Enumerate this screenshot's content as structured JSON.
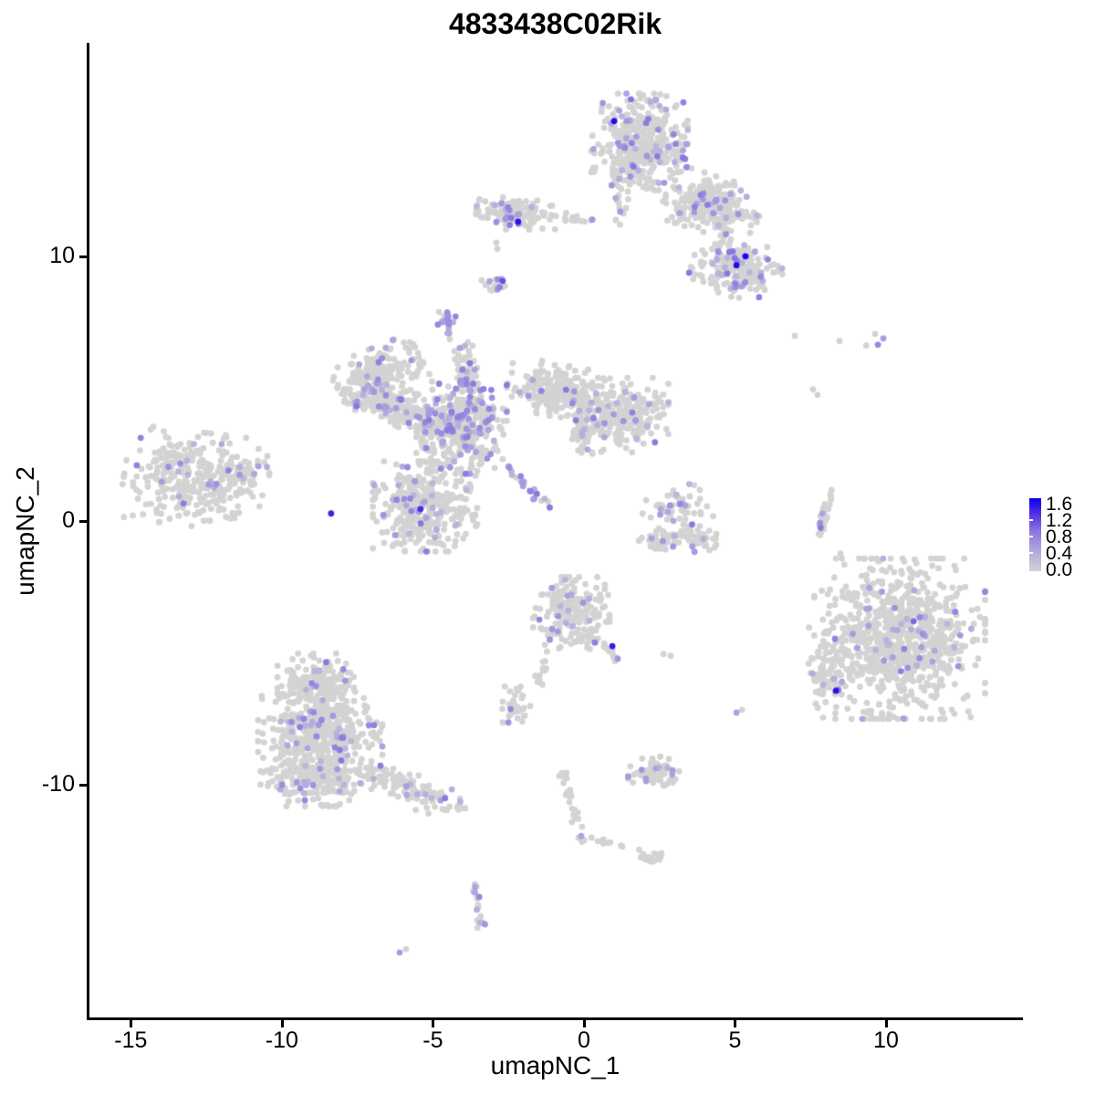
{
  "chart_data": {
    "type": "scatter",
    "title": "4833438C02Rik",
    "xlabel": "umapNC_1",
    "ylabel": "umapNC_2",
    "x_ticks": [
      -15,
      -10,
      -5,
      0,
      5,
      10
    ],
    "y_ticks": [
      10,
      0,
      -10
    ],
    "x_range": [
      -16.4,
      14.5
    ],
    "y_range": [
      -18.8,
      18.1
    ],
    "grid": false,
    "legend": {
      "position": "right",
      "labels": [
        "1.6",
        "1.2",
        "0.8",
        "0.4",
        "0.0"
      ],
      "min": 0.0,
      "max": 1.6,
      "color_low": "#D3D3D3",
      "color_high": "#0000FF"
    },
    "colors": {
      "zero_expression": "#D3D3D3",
      "stops": [
        [
          0,
          "#D3D3D3"
        ],
        [
          0.3,
          "#AFA3DF"
        ],
        [
          0.55,
          "#8C76DF"
        ],
        [
          0.8,
          "#4E2BE3"
        ],
        [
          1,
          "#0A00F0"
        ]
      ]
    },
    "seed": 42,
    "point_radius_px": 3.4,
    "clusters": [
      {
        "name": "top-main",
        "cx": 1.84,
        "cy": 14.2,
        "rx": 1.45,
        "ry": 1.8,
        "rot": 0,
        "n": 420,
        "frac": 0.1
      },
      {
        "name": "top-neck",
        "type": "band",
        "p1": [
          1.12,
          12.99
        ],
        "p2": [
          1.3,
          11.09
        ],
        "w": 0.25,
        "n": 16,
        "frac": 0.06
      },
      {
        "name": "top-right-arm",
        "cx": 4.26,
        "cy": 11.96,
        "rx": 1.45,
        "ry": 0.97,
        "rot": -20,
        "n": 260,
        "frac": 0.13
      },
      {
        "name": "top-right-join",
        "type": "band",
        "p1": [
          4.47,
          11.02
        ],
        "p2": [
          4.83,
          10.47
        ],
        "w": 0.2,
        "n": 10,
        "frac": 0.1
      },
      {
        "name": "top-right-lower",
        "cx": 5.07,
        "cy": 9.54,
        "rx": 1.36,
        "ry": 0.97,
        "rot": -15,
        "n": 200,
        "frac": 0.12
      },
      {
        "name": "top-left-arm",
        "cx": -2.24,
        "cy": 11.61,
        "rx": 1.21,
        "ry": 0.55,
        "rot": -5,
        "n": 120,
        "frac": 0.13
      },
      {
        "name": "top-left-chain",
        "type": "band",
        "p1": [
          -1.09,
          11.54
        ],
        "p2": [
          0.57,
          11.37
        ],
        "w": 0.18,
        "n": 16,
        "frac": 0.05
      },
      {
        "name": "small-streak",
        "cx": -2.9,
        "cy": 8.85,
        "rx": 0.33,
        "ry": 0.52,
        "rot": 55,
        "n": 20,
        "frac": 0.4
      },
      {
        "name": "tiny-blob",
        "cx": -4.59,
        "cy": 7.57,
        "rx": 0.39,
        "ry": 0.42,
        "rot": 0,
        "n": 20,
        "frac": 0.45
      },
      {
        "name": "mid-arm-upleft",
        "cx": -6.77,
        "cy": 5.56,
        "rx": 1.36,
        "ry": 0.9,
        "rot": 25,
        "n": 200,
        "frac": 0.08
      },
      {
        "name": "mid-band",
        "cx": -6.25,
        "cy": 4.32,
        "rx": 1.66,
        "ry": 0.62,
        "rot": -20,
        "n": 180,
        "frac": 0.15
      },
      {
        "name": "mid-core",
        "cx": -4.05,
        "cy": 3.49,
        "rx": 1.36,
        "ry": 1.55,
        "rot": 0,
        "n": 400,
        "frac": 0.17
      },
      {
        "name": "mid-lower-lobe",
        "cx": -5.26,
        "cy": 0.55,
        "rx": 1.57,
        "ry": 1.55,
        "rot": 0,
        "n": 380,
        "frac": 0.11
      },
      {
        "name": "mid-up-spur",
        "cx": -3.9,
        "cy": 5.49,
        "rx": 0.39,
        "ry": 1.04,
        "rot": 0,
        "n": 60,
        "frac": 0.22
      },
      {
        "name": "mid-right-arm",
        "cx": -0.88,
        "cy": 4.94,
        "rx": 1.51,
        "ry": 0.9,
        "rot": -12,
        "n": 230,
        "frac": 0.08
      },
      {
        "name": "mid-right-lobe",
        "cx": 1.3,
        "cy": 4.01,
        "rx": 1.36,
        "ry": 1.28,
        "rot": 0,
        "n": 270,
        "frac": 0.08
      },
      {
        "name": "mid-diag-tail",
        "type": "band",
        "p1": [
          -2.63,
          2.11
        ],
        "p2": [
          -1.15,
          0.52
        ],
        "w": 0.2,
        "n": 26,
        "frac": 0.55
      },
      {
        "name": "mid-bridge",
        "cx": 0.03,
        "cy": 3.49,
        "rx": 0.54,
        "ry": 0.86,
        "rot": 0,
        "n": 50,
        "frac": 0.1
      },
      {
        "name": "far-left",
        "cx": -12.9,
        "cy": 1.59,
        "rx": 2.11,
        "ry": 1.62,
        "rot": -8,
        "n": 320,
        "frac": 0.07
      },
      {
        "name": "far-left-tip",
        "cx": -11.21,
        "cy": 1.76,
        "rx": 0.72,
        "ry": 0.45,
        "rot": 0,
        "n": 45,
        "frac": 0.07
      },
      {
        "name": "crescent-top",
        "cx": 3.11,
        "cy": 0.66,
        "rx": 1.06,
        "ry": 0.72,
        "rot": 0,
        "n": 45,
        "frac": 0.13
      },
      {
        "name": "crescent-left",
        "cx": 2.57,
        "cy": -0.69,
        "rx": 0.66,
        "ry": 0.38,
        "rot": 20,
        "n": 45,
        "frac": 0.05
      },
      {
        "name": "crescent-right",
        "cx": 3.78,
        "cy": -0.62,
        "rx": 0.66,
        "ry": 0.38,
        "rot": -20,
        "n": 45,
        "frac": 0.05
      },
      {
        "name": "sliver",
        "type": "band",
        "p1": [
          7.76,
          -0.59
        ],
        "p2": [
          8.22,
          1.11
        ],
        "w": 0.12,
        "n": 30,
        "frac": 0.05
      },
      {
        "name": "right-big",
        "cx": 10.45,
        "cy": -4.46,
        "rx": 2.57,
        "ry": 2.76,
        "rot": 0,
        "n": 860,
        "frac": 0.05
      },
      {
        "name": "right-appendage",
        "cx": 8.03,
        "cy": -5.74,
        "rx": 0.54,
        "ry": 1.55,
        "rot": 0,
        "n": 70,
        "frac": 0.04
      },
      {
        "name": "center-bottom",
        "cx": -0.42,
        "cy": -3.49,
        "rx": 1.15,
        "ry": 1.24,
        "rot": 0,
        "n": 215,
        "frac": 0.06
      },
      {
        "name": "cb-spur",
        "type": "band",
        "p1": [
          0.18,
          -4.22
        ],
        "p2": [
          1.12,
          -5.22
        ],
        "w": 0.2,
        "n": 24,
        "frac": 0.12
      },
      {
        "name": "cb-chain-a",
        "type": "band",
        "p1": [
          -1.15,
          -4.84
        ],
        "p2": [
          -1.6,
          -6.43
        ],
        "w": 0.15,
        "n": 16,
        "frac": 0
      },
      {
        "name": "cb-chain-b",
        "type": "band",
        "p1": [
          -0.76,
          -9.16
        ],
        "p2": [
          -0.06,
          -12.3
        ],
        "w": 0.16,
        "n": 30,
        "frac": 0.03
      },
      {
        "name": "cb-dots-right",
        "type": "band",
        "p1": [
          0.3,
          -12.02
        ],
        "p2": [
          1.6,
          -12.37
        ],
        "w": 0.12,
        "n": 9,
        "frac": 0
      },
      {
        "name": "small-blob-grey",
        "cx": 2.21,
        "cy": -12.72,
        "rx": 0.36,
        "ry": 0.28,
        "rot": 0,
        "n": 18,
        "frac": 0
      },
      {
        "name": "blob-left-small",
        "cx": -2.24,
        "cy": -6.95,
        "rx": 0.42,
        "ry": 0.62,
        "rot": 0,
        "n": 40,
        "frac": 0.04
      },
      {
        "name": "bottom-left-top",
        "cx": -8.88,
        "cy": -6.12,
        "rx": 1.15,
        "ry": 1.0,
        "rot": 0,
        "n": 180,
        "frac": 0.09
      },
      {
        "name": "bottom-left-mid",
        "cx": -8.73,
        "cy": -7.91,
        "rx": 1.87,
        "ry": 1.31,
        "rot": 0,
        "n": 380,
        "frac": 0.09
      },
      {
        "name": "bottom-left-low",
        "cx": -8.88,
        "cy": -9.71,
        "rx": 1.66,
        "ry": 1.0,
        "rot": 0,
        "n": 260,
        "frac": 0.09
      },
      {
        "name": "bottom-left-tail",
        "type": "band",
        "p1": [
          -7.07,
          -9.57
        ],
        "p2": [
          -4.14,
          -10.82
        ],
        "w": 0.5,
        "n": 120,
        "frac": 0.08
      },
      {
        "name": "bottom-small",
        "cx": 2.33,
        "cy": -9.5,
        "rx": 0.79,
        "ry": 0.52,
        "rot": 0,
        "n": 65,
        "frac": 0.15
      },
      {
        "name": "tiny-vert-chain",
        "type": "band",
        "p1": [
          -3.63,
          -13.75
        ],
        "p2": [
          -3.41,
          -15.38
        ],
        "w": 0.14,
        "n": 22,
        "frac": 0.35
      }
    ],
    "extra_points": [
      {
        "x": -2.9,
        "y": 10.54,
        "v": 0
      },
      {
        "x": -2.87,
        "y": 10.3,
        "v": 0
      },
      {
        "x": -4.44,
        "y": 6.88,
        "v": 0
      },
      {
        "x": -4.29,
        "y": 6.43,
        "v": 0
      },
      {
        "x": -4.02,
        "y": 6.57,
        "v": 0
      },
      {
        "x": -3.84,
        "y": 6.77,
        "v": 0
      },
      {
        "x": 6.98,
        "y": 7.01,
        "v": 0
      },
      {
        "x": 8.46,
        "y": 6.81,
        "v": 0
      },
      {
        "x": 9.34,
        "y": 6.64,
        "v": 0
      },
      {
        "x": 9.64,
        "y": 7.08,
        "v": 0
      },
      {
        "x": 7.58,
        "y": 4.98,
        "v": 0
      },
      {
        "x": 7.73,
        "y": 4.77,
        "v": 0
      },
      {
        "x": 9.73,
        "y": 6.67,
        "v": 0.75
      },
      {
        "x": 9.91,
        "y": 6.91,
        "v": 0.55
      },
      {
        "x": 2.24,
        "y": -0.66,
        "v": 0.5
      },
      {
        "x": 3.59,
        "y": -0.97,
        "v": 0.55
      },
      {
        "x": 3.66,
        "y": -1.17,
        "v": 0.55
      },
      {
        "x": 3.23,
        "y": 0.66,
        "v": 0.5
      },
      {
        "x": 3.35,
        "y": 0.59,
        "v": 0.5
      },
      {
        "x": 2.54,
        "y": 0.45,
        "v": 0.45
      },
      {
        "x": 2.78,
        "y": 0.34,
        "v": 0.45
      },
      {
        "x": 2.96,
        "y": 0.0,
        "v": 0.45
      },
      {
        "x": 7.89,
        "y": 0.28,
        "v": 0.5
      },
      {
        "x": 8.49,
        "y": -1.24,
        "v": 0
      },
      {
        "x": 5.05,
        "y": -7.26,
        "v": 0.5
      },
      {
        "x": 5.23,
        "y": -7.15,
        "v": 0
      },
      {
        "x": 2.63,
        "y": -5.04,
        "v": 0
      },
      {
        "x": 2.87,
        "y": -5.11,
        "v": 0
      },
      {
        "x": -6.1,
        "y": -16.34,
        "v": 0.55
      },
      {
        "x": -5.89,
        "y": -16.21,
        "v": 0
      },
      {
        "x": -0.09,
        "y": -11.93,
        "v": 0.5
      },
      {
        "x": 1.0,
        "y": 15.14,
        "v": 1.5
      },
      {
        "x": -2.18,
        "y": 11.33,
        "v": 1.45
      },
      {
        "x": 5.35,
        "y": 10.02,
        "v": 1.55
      },
      {
        "x": 5.05,
        "y": 9.68,
        "v": 1.5
      },
      {
        "x": -5.41,
        "y": 0.45,
        "v": 1.3
      },
      {
        "x": -8.37,
        "y": 0.28,
        "v": 1.35
      },
      {
        "x": 8.34,
        "y": -6.43,
        "v": 1.45
      },
      {
        "x": 0.94,
        "y": -4.74,
        "v": 1.4
      },
      {
        "x": -2.69,
        "y": 9.09,
        "v": 1.1
      },
      {
        "x": 10.91,
        "y": -3.8,
        "v": 0.95
      }
    ]
  }
}
